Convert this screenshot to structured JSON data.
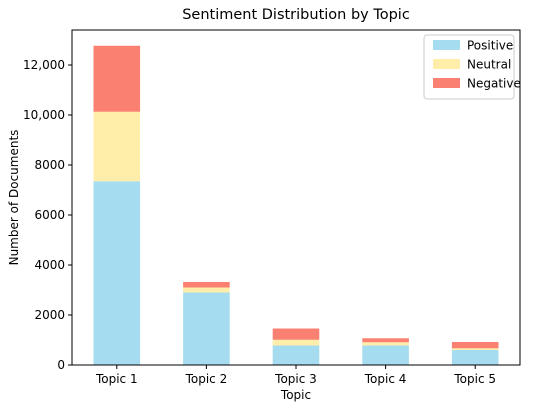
{
  "chart_data": {
    "type": "bar",
    "stacked": true,
    "title": "Sentiment Distribution by Topic",
    "xlabel": "Topic",
    "ylabel": "Number of Documents",
    "categories": [
      "Topic 1",
      "Topic 2",
      "Topic 3",
      "Topic 4",
      "Topic 5"
    ],
    "series": [
      {
        "name": "Positive",
        "color": "#a6dcef",
        "values": [
          7350,
          2900,
          780,
          780,
          600
        ]
      },
      {
        "name": "Neutral",
        "color": "#ffeeaa",
        "values": [
          2780,
          200,
          230,
          130,
          70
        ]
      },
      {
        "name": "Negative",
        "color": "#fa8072",
        "values": [
          2640,
          220,
          450,
          160,
          250
        ]
      }
    ],
    "ylim": [
      0,
      13400
    ],
    "yticks": [
      {
        "value": 0,
        "label": "0"
      },
      {
        "value": 2000,
        "label": "2000"
      },
      {
        "value": 4000,
        "label": "4000"
      },
      {
        "value": 6000,
        "label": "6000"
      },
      {
        "value": 8000,
        "label": "8000"
      },
      {
        "value": 10000,
        "label": "10,000"
      },
      {
        "value": 12000,
        "label": "12,000"
      }
    ],
    "grid": false,
    "legend_position": "top-right"
  }
}
